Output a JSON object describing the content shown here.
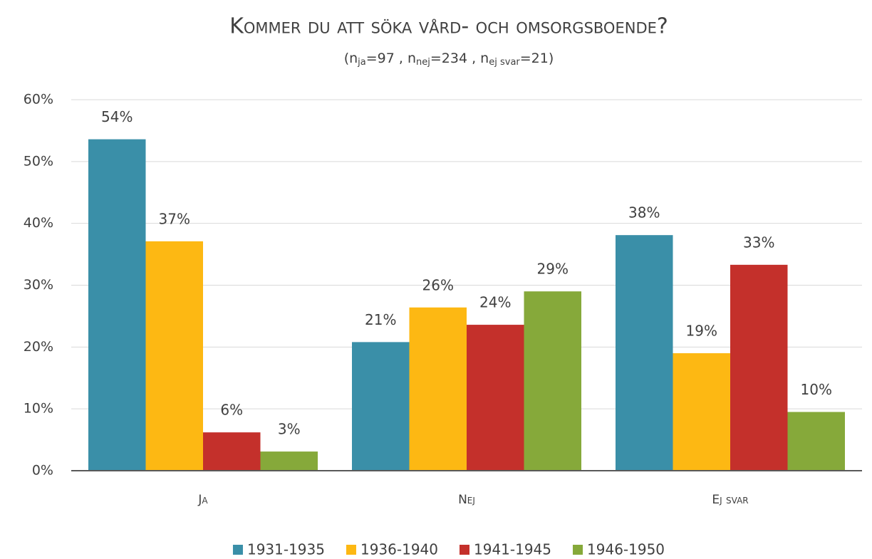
{
  "chart_data": {
    "type": "bar",
    "title": "Kommer du att söka vård- och omsorgsboende?",
    "subtitle": [
      "(n",
      "ja",
      "=97 , n",
      "nej",
      "=234 , n",
      "ej svar",
      "=21)"
    ],
    "categories": [
      "Ja",
      "Nej",
      "Ej svar"
    ],
    "series": [
      {
        "name": "1931-1935",
        "color": "#3a8fa8",
        "values": [
          53.6,
          20.8,
          38.1
        ],
        "value_labels": [
          "54%",
          "21%",
          "38%"
        ]
      },
      {
        "name": "1936-1940",
        "color": "#fdb813",
        "values": [
          37.1,
          26.4,
          19.0
        ],
        "value_labels": [
          "37%",
          "26%",
          "19%"
        ]
      },
      {
        "name": "1941-1945",
        "color": "#c4302b",
        "values": [
          6.2,
          23.6,
          33.3
        ],
        "value_labels": [
          "6%",
          "24%",
          "33%"
        ]
      },
      {
        "name": "1946-1950",
        "color": "#86a93a",
        "values": [
          3.1,
          29.0,
          9.5
        ],
        "value_labels": [
          "3%",
          "29%",
          "10%"
        ]
      }
    ],
    "ylim": [
      0,
      60
    ],
    "yticks": [
      {
        "value": 0,
        "label": "0%"
      },
      {
        "value": 10,
        "label": "10%"
      },
      {
        "value": 20,
        "label": "20%"
      },
      {
        "value": 30,
        "label": "30%"
      },
      {
        "value": 40,
        "label": "40%"
      },
      {
        "value": 50,
        "label": "50%"
      },
      {
        "value": 60,
        "label": "60%"
      }
    ],
    "grid": true,
    "legend": "bottom"
  }
}
